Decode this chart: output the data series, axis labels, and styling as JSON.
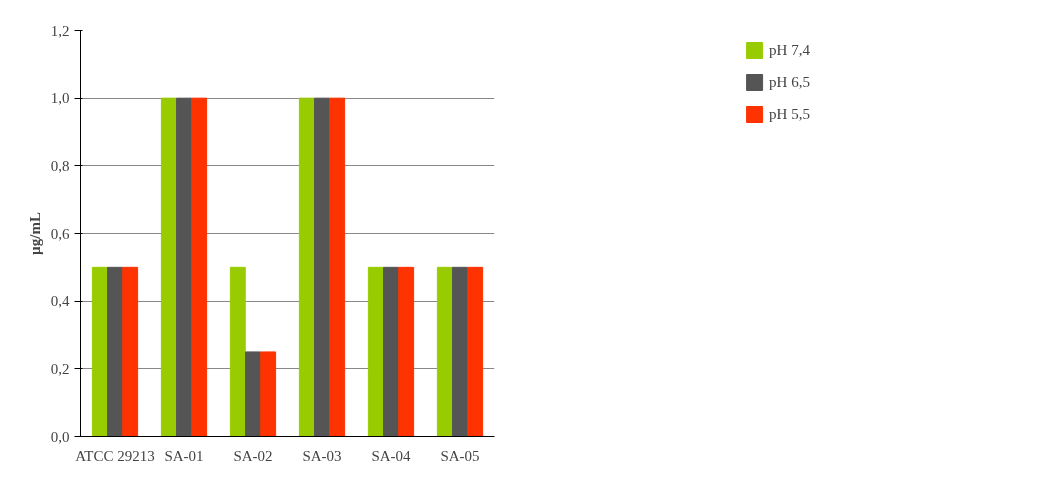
{
  "chart_data": {
    "type": "bar",
    "ylabel": "µg/mL",
    "categories": [
      "ATCC 29213",
      "SA-01",
      "SA-02",
      "SA-03",
      "SA-04",
      "SA-05"
    ],
    "series": [
      {
        "name": "pH 7,4",
        "color": "#99cc00",
        "values": [
          0.5,
          1.0,
          0.5,
          1.0,
          0.5,
          0.5
        ]
      },
      {
        "name": "pH 6,5",
        "color": "#555555",
        "values": [
          0.5,
          1.0,
          0.25,
          1.0,
          0.5,
          0.5
        ]
      },
      {
        "name": "pH 5,5",
        "color": "#ff3300",
        "values": [
          0.5,
          1.0,
          0.25,
          1.0,
          0.5,
          0.5
        ]
      }
    ],
    "ylim": [
      0,
      1.2
    ],
    "yticks": [
      {
        "value": 0,
        "label": "0,0"
      },
      {
        "value": 0.2,
        "label": "0,2"
      },
      {
        "value": 0.4,
        "label": "0,4"
      },
      {
        "value": 0.6,
        "label": "0,6"
      },
      {
        "value": 0.8,
        "label": "0,8"
      },
      {
        "value": 1.0,
        "label": "1,0"
      },
      {
        "value": 1.2,
        "label": "1,2"
      }
    ],
    "grid": "y",
    "legend": "top right"
  }
}
